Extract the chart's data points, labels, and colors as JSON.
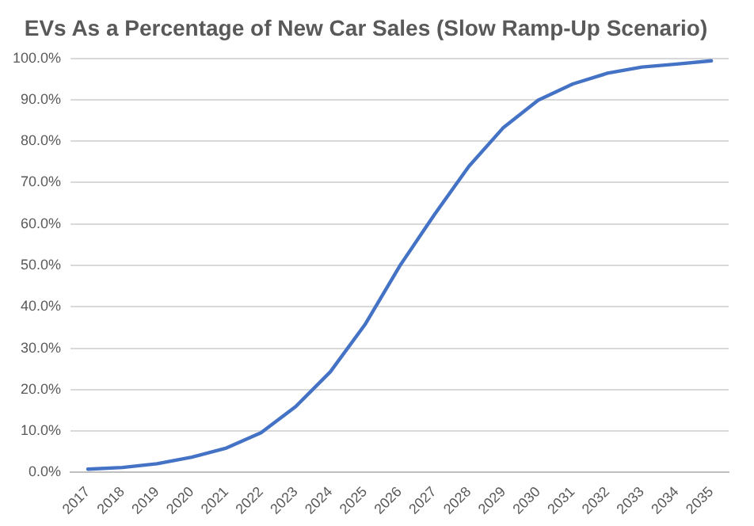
{
  "chart_data": {
    "type": "line",
    "title": "EVs As a Percentage of New Car Sales (Slow Ramp-Up Scenario)",
    "categories": [
      "2017",
      "2018",
      "2019",
      "2020",
      "2021",
      "2022",
      "2023",
      "2024",
      "2025",
      "2026",
      "2027",
      "2028",
      "2029",
      "2030",
      "2031",
      "2032",
      "2033",
      "2034",
      "2035"
    ],
    "series": [
      {
        "color": "#4472c4",
        "values": [
          0.8,
          1.2,
          2.1,
          3.7,
          5.9,
          9.6,
          15.9,
          24.3,
          35.7,
          49.8,
          62.2,
          73.9,
          83.3,
          89.9,
          93.8,
          96.4,
          97.9,
          98.6,
          99.4
        ]
      }
    ],
    "ylim": [
      0,
      100
    ],
    "yticks": [
      {
        "value": 0,
        "label": "0.0%"
      },
      {
        "value": 10,
        "label": "10.0%"
      },
      {
        "value": 20,
        "label": "20.0%"
      },
      {
        "value": 30,
        "label": "30.0%"
      },
      {
        "value": 40,
        "label": "40.0%"
      },
      {
        "value": 50,
        "label": "50.0%"
      },
      {
        "value": 60,
        "label": "60.0%"
      },
      {
        "value": 70,
        "label": "70.0%"
      },
      {
        "value": 80,
        "label": "80.0%"
      },
      {
        "value": 90,
        "label": "90.0%"
      },
      {
        "value": 100,
        "label": "100.0%"
      }
    ],
    "grid": "y",
    "legend": false,
    "marker": "none",
    "line_style": "solid"
  }
}
